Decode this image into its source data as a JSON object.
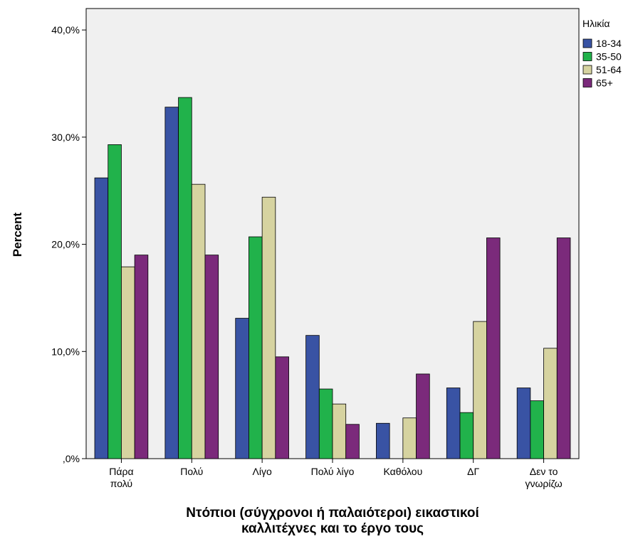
{
  "chart_data": {
    "type": "bar",
    "title": "",
    "xlabel_lines": [
      "Ντόπιοι (σύγχρονοι ή παλαιότεροι) εικαστικοί",
      "καλλιτέχνες και το έργο τους"
    ],
    "ylabel": "Percent",
    "ylim": [
      0,
      42
    ],
    "yticks": [
      0,
      10,
      20,
      30,
      40
    ],
    "ytick_labels": [
      ",0%",
      "10,0%",
      "20,0%",
      "30,0%",
      "40,0%"
    ],
    "categories": [
      [
        "Πάρα",
        "πολύ"
      ],
      [
        "Πολύ"
      ],
      [
        "Λίγο"
      ],
      [
        "Πολύ λίγο"
      ],
      [
        "Καθόλου"
      ],
      [
        "ΔΓ"
      ],
      [
        "Δεν το",
        "γνωρίζω"
      ]
    ],
    "legend_title": "Ηλικία",
    "legend_position": "right",
    "series": [
      {
        "name": "18-34",
        "color": "#3953a4",
        "values": [
          26.2,
          32.8,
          13.1,
          11.5,
          3.3,
          6.6,
          6.6
        ]
      },
      {
        "name": "35-50",
        "color": "#21b24b",
        "values": [
          29.3,
          33.7,
          20.7,
          6.5,
          0,
          4.3,
          5.4
        ]
      },
      {
        "name": "51-64",
        "color": "#d6d3a0",
        "values": [
          17.9,
          25.6,
          24.4,
          5.1,
          3.8,
          12.8,
          10.3
        ]
      },
      {
        "name": "65+",
        "color": "#7b2a7b",
        "values": [
          19.0,
          19.0,
          9.5,
          3.2,
          7.9,
          20.6,
          20.6
        ]
      }
    ],
    "plot_background": "#f0f0f0",
    "grid": false
  }
}
